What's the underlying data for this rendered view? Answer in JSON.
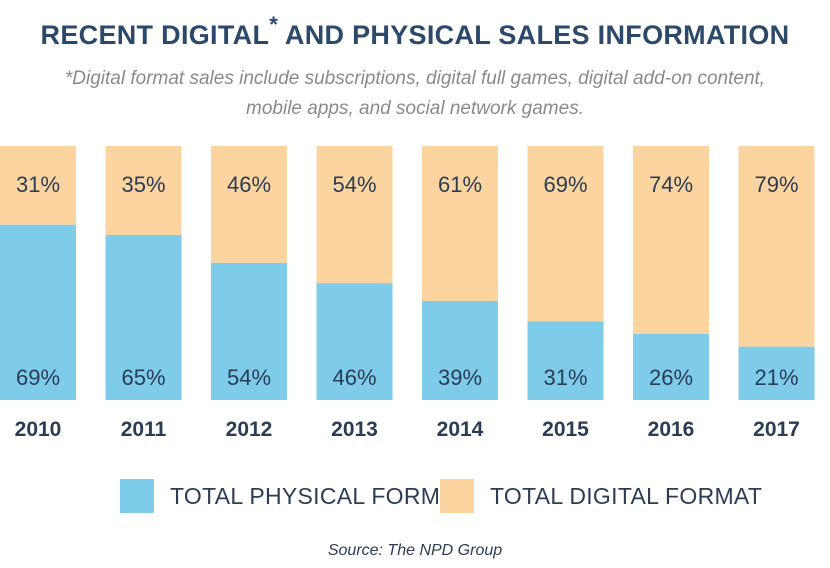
{
  "title_main": "RECENT DIGITAL",
  "title_star": "*",
  "title_rest": " AND PHYSICAL SALES INFORMATION",
  "subtitle": "*Digital format sales include subscriptions, digital full games, digital add-on content, mobile apps, and social network games.",
  "source": "Source: The NPD Group",
  "colors": {
    "physical": "#7ecbea",
    "digital": "#fcd4a0",
    "text": "#2b3d55",
    "title": "#2b4a6b"
  },
  "chart_data": {
    "type": "bar",
    "stacked": true,
    "categories": [
      "2010",
      "2011",
      "2012",
      "2013",
      "2014",
      "2015",
      "2016",
      "2017"
    ],
    "series": [
      {
        "name": "TOTAL PHYSICAL FORMAT",
        "values": [
          69,
          65,
          54,
          46,
          39,
          31,
          26,
          21
        ],
        "labels": [
          "69%",
          "65%",
          "54%",
          "46%",
          "39%",
          "31%",
          "26%",
          "21%"
        ]
      },
      {
        "name": "TOTAL DIGITAL FORMAT",
        "values": [
          31,
          35,
          46,
          54,
          61,
          69,
          74,
          79
        ],
        "labels": [
          "31%",
          "35%",
          "46%",
          "54%",
          "61%",
          "69%",
          "74%",
          "79%"
        ]
      }
    ],
    "ylim": [
      0,
      100
    ],
    "grid": false,
    "legend": "bottom"
  }
}
